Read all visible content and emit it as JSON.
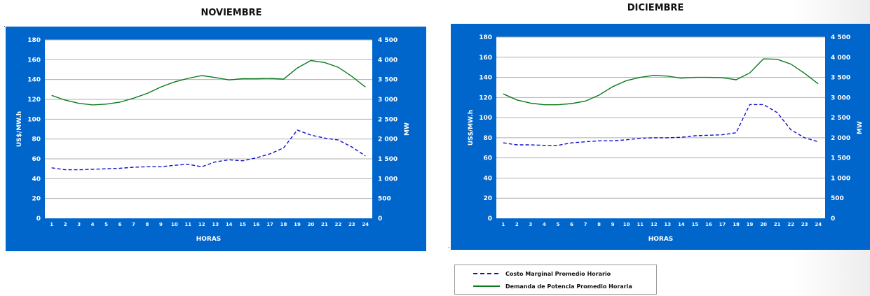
{
  "colors": {
    "panel": "#0066cc",
    "plot": "#ffffff",
    "grid": "#b0b0b0",
    "demand": "#0a7a1e",
    "cost": "#1010cc"
  },
  "legend": {
    "cost_label": "Costo Marginal Promedio Horario",
    "demand_label": "Demanda de Potencia Promedio Horaria"
  },
  "chart_data": [
    {
      "type": "line",
      "title": "NOVIEMBRE",
      "xlabel": "HORAS",
      "ylabel": "US$/MW.h",
      "y2label": "MW",
      "categories": [
        "1",
        "2",
        "3",
        "4",
        "5",
        "6",
        "7",
        "8",
        "9",
        "10",
        "11",
        "12",
        "13",
        "14",
        "15",
        "16",
        "17",
        "18",
        "19",
        "20",
        "21",
        "22",
        "23",
        "24"
      ],
      "ylim": [
        0,
        180
      ],
      "yticks": [
        "0",
        "20",
        "40",
        "60",
        "80",
        "100",
        "120",
        "140",
        "160",
        "180"
      ],
      "y2lim": [
        0,
        4500
      ],
      "y2ticks": [
        "0",
        "500",
        "1 000",
        "1 500",
        "2 000",
        "2 500",
        "3 000",
        "3 500",
        "4 000",
        "4 500"
      ],
      "series": [
        {
          "name": "Costo Marginal Promedio Horario",
          "axis": "left",
          "style": "dashed",
          "values": [
            51,
            49,
            49,
            49.5,
            50,
            50.5,
            51.5,
            52,
            52,
            53.5,
            54.5,
            52,
            57,
            59,
            58,
            61,
            65,
            71,
            89,
            84,
            81,
            79,
            72,
            63
          ]
        },
        {
          "name": "Demanda de Potencia Promedio Horaria",
          "axis": "right",
          "style": "solid",
          "values": [
            3100,
            2980,
            2900,
            2860,
            2880,
            2930,
            3030,
            3150,
            3310,
            3440,
            3530,
            3600,
            3550,
            3490,
            3520,
            3520,
            3530,
            3510,
            3790,
            3980,
            3930,
            3810,
            3580,
            3310
          ]
        }
      ]
    },
    {
      "type": "line",
      "title": "DICIEMBRE",
      "xlabel": "HORAS",
      "ylabel": "US$/MW.h",
      "y2label": "MW",
      "categories": [
        "1",
        "2",
        "3",
        "4",
        "5",
        "6",
        "7",
        "8",
        "9",
        "10",
        "11",
        "12",
        "13",
        "14",
        "15",
        "16",
        "17",
        "18",
        "19",
        "20",
        "21",
        "22",
        "23",
        "24"
      ],
      "ylim": [
        0,
        180
      ],
      "yticks": [
        "0",
        "20",
        "40",
        "60",
        "80",
        "100",
        "120",
        "140",
        "160",
        "180"
      ],
      "y2lim": [
        0,
        4500
      ],
      "y2ticks": [
        "0",
        "500",
        "1 000",
        "1 500",
        "2 000",
        "2 500",
        "3 000",
        "3 500",
        "4 000",
        "4 500"
      ],
      "series": [
        {
          "name": "Costo Marginal Promedio Horario",
          "axis": "left",
          "style": "dashed",
          "values": [
            75,
            73,
            73,
            72.5,
            72.5,
            75,
            76,
            77,
            77,
            78,
            79.5,
            80,
            80,
            80.5,
            82,
            82.5,
            83,
            85,
            113,
            113,
            105,
            88,
            80,
            76
          ]
        },
        {
          "name": "Demanda de Potencia Promedio Horaria",
          "axis": "right",
          "style": "solid",
          "values": [
            3090,
            2940,
            2860,
            2820,
            2820,
            2850,
            2910,
            3060,
            3270,
            3420,
            3500,
            3550,
            3530,
            3480,
            3500,
            3500,
            3490,
            3440,
            3610,
            3960,
            3950,
            3830,
            3600,
            3340
          ]
        }
      ]
    }
  ]
}
